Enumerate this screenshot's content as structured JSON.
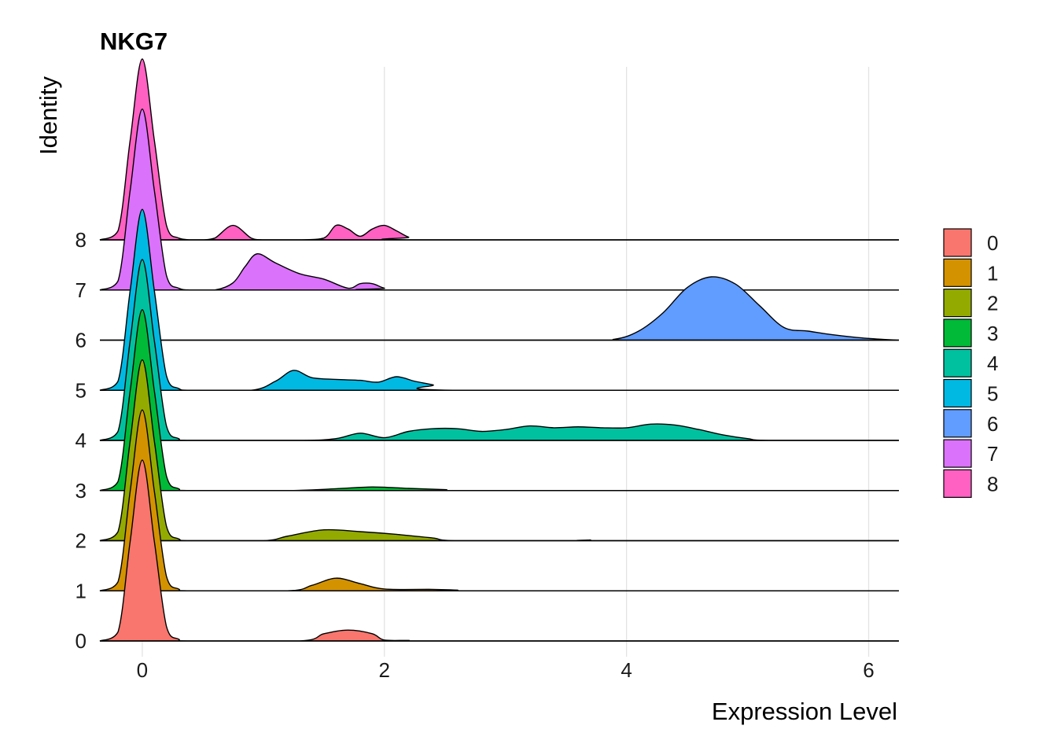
{
  "chart_data": {
    "type": "area",
    "subtype": "ridgeline",
    "title": "NKG7",
    "xlabel": "Expression Level",
    "ylabel": "Identity",
    "xlim": [
      -0.35,
      6.25
    ],
    "x_ticks": [
      0,
      2,
      4,
      6
    ],
    "grid": "vertical major lines",
    "legend": "right",
    "series": [
      {
        "name": "0",
        "color": "#F8766D",
        "x": [
          -0.35,
          -0.2,
          -0.1,
          0,
          0.1,
          0.2,
          0.3,
          0.4,
          1.3,
          1.5,
          1.7,
          1.9,
          2.0,
          2.2,
          2.4,
          6.25
        ],
        "y": [
          0,
          0.05,
          0.55,
          1.0,
          0.55,
          0.08,
          0.01,
          0,
          0,
          0.04,
          0.06,
          0.04,
          0.005,
          0.003,
          0,
          0
        ]
      },
      {
        "name": "1",
        "color": "#D39200",
        "x": [
          -0.35,
          -0.2,
          -0.1,
          0,
          0.1,
          0.2,
          0.3,
          0.4,
          1.2,
          1.4,
          1.6,
          1.8,
          2.0,
          2.4,
          2.6,
          2.8,
          6.25
        ],
        "y": [
          0,
          0.05,
          0.55,
          1.0,
          0.55,
          0.08,
          0.01,
          0,
          0,
          0.03,
          0.07,
          0.04,
          0.01,
          0.008,
          0.004,
          0,
          0
        ]
      },
      {
        "name": "2",
        "color": "#93AA00",
        "x": [
          -0.35,
          -0.2,
          -0.1,
          0,
          0.1,
          0.2,
          0.3,
          0.4,
          1.0,
          1.2,
          1.5,
          1.8,
          2.1,
          2.4,
          2.6,
          3.6,
          3.7,
          3.8,
          6.25
        ],
        "y": [
          0,
          0.05,
          0.55,
          1.0,
          0.55,
          0.08,
          0.01,
          0,
          0,
          0.025,
          0.06,
          0.05,
          0.035,
          0.015,
          0,
          0,
          0.004,
          0,
          0
        ]
      },
      {
        "name": "3",
        "color": "#00BA38",
        "x": [
          -0.35,
          -0.2,
          -0.1,
          0,
          0.1,
          0.2,
          0.3,
          0.4,
          1.2,
          1.6,
          1.9,
          2.2,
          2.5,
          2.8,
          6.25
        ],
        "y": [
          0,
          0.05,
          0.55,
          1.0,
          0.55,
          0.08,
          0.01,
          0,
          0,
          0.01,
          0.02,
          0.012,
          0.005,
          0,
          0
        ]
      },
      {
        "name": "4",
        "color": "#00C19F",
        "x": [
          -0.35,
          -0.2,
          -0.1,
          0,
          0.1,
          0.2,
          0.3,
          0.4,
          1.3,
          1.6,
          1.8,
          2.0,
          2.2,
          2.4,
          2.6,
          2.8,
          3.0,
          3.2,
          3.4,
          3.6,
          3.8,
          4.0,
          4.2,
          4.4,
          4.6,
          4.8,
          5.0,
          5.2,
          6.25
        ],
        "y": [
          0,
          0.05,
          0.55,
          1.0,
          0.55,
          0.08,
          0.01,
          0,
          0,
          0.01,
          0.04,
          0.015,
          0.05,
          0.065,
          0.065,
          0.05,
          0.06,
          0.08,
          0.07,
          0.075,
          0.07,
          0.07,
          0.09,
          0.085,
          0.06,
          0.03,
          0.01,
          0,
          0
        ]
      },
      {
        "name": "5",
        "color": "#00B9E3",
        "x": [
          -0.35,
          -0.2,
          -0.1,
          0,
          0.1,
          0.2,
          0.3,
          0.4,
          0.9,
          1.1,
          1.25,
          1.4,
          1.6,
          1.8,
          1.95,
          2.1,
          2.25,
          2.4,
          2.6,
          6.25
        ],
        "y": [
          0,
          0.05,
          0.55,
          1.0,
          0.55,
          0.08,
          0.01,
          0,
          0,
          0.05,
          0.11,
          0.07,
          0.06,
          0.055,
          0.045,
          0.075,
          0.05,
          0.03,
          0,
          0
        ]
      },
      {
        "name": "6",
        "color": "#619CFF",
        "x": [
          -0.35,
          -0.1,
          0,
          0.2,
          3.6,
          3.9,
          4.1,
          4.3,
          4.5,
          4.7,
          4.9,
          5.1,
          5.3,
          5.5,
          5.7,
          5.9,
          6.1,
          6.25
        ],
        "y": [
          0,
          0,
          0,
          0,
          0,
          0.005,
          0.05,
          0.15,
          0.29,
          0.35,
          0.31,
          0.19,
          0.07,
          0.05,
          0.03,
          0.015,
          0.005,
          0
        ]
      },
      {
        "name": "7",
        "color": "#DB72FB",
        "x": [
          -0.35,
          -0.2,
          -0.1,
          0,
          0.1,
          0.2,
          0.3,
          0.4,
          0.6,
          0.75,
          0.85,
          0.95,
          1.1,
          1.3,
          1.5,
          1.7,
          1.8,
          1.9,
          2.0,
          2.1,
          6.25
        ],
        "y": [
          0,
          0.05,
          0.55,
          1.0,
          0.55,
          0.08,
          0.01,
          0,
          0,
          0.04,
          0.13,
          0.2,
          0.15,
          0.09,
          0.06,
          0.01,
          0.035,
          0.035,
          0.01,
          0,
          0
        ]
      },
      {
        "name": "8",
        "color": "#FF61C3",
        "x": [
          -0.35,
          -0.2,
          -0.1,
          0,
          0.1,
          0.2,
          0.3,
          0.4,
          0.5,
          0.6,
          0.75,
          0.9,
          1.0,
          1.3,
          1.5,
          1.6,
          1.7,
          1.8,
          1.9,
          2.0,
          2.1,
          2.2,
          2.3,
          6.25
        ],
        "y": [
          0,
          0.05,
          0.55,
          1.0,
          0.55,
          0.08,
          0.01,
          0,
          0,
          0.01,
          0.08,
          0.01,
          0,
          0,
          0.01,
          0.08,
          0.06,
          0.02,
          0.06,
          0.08,
          0.05,
          0.015,
          0,
          0
        ]
      }
    ]
  }
}
